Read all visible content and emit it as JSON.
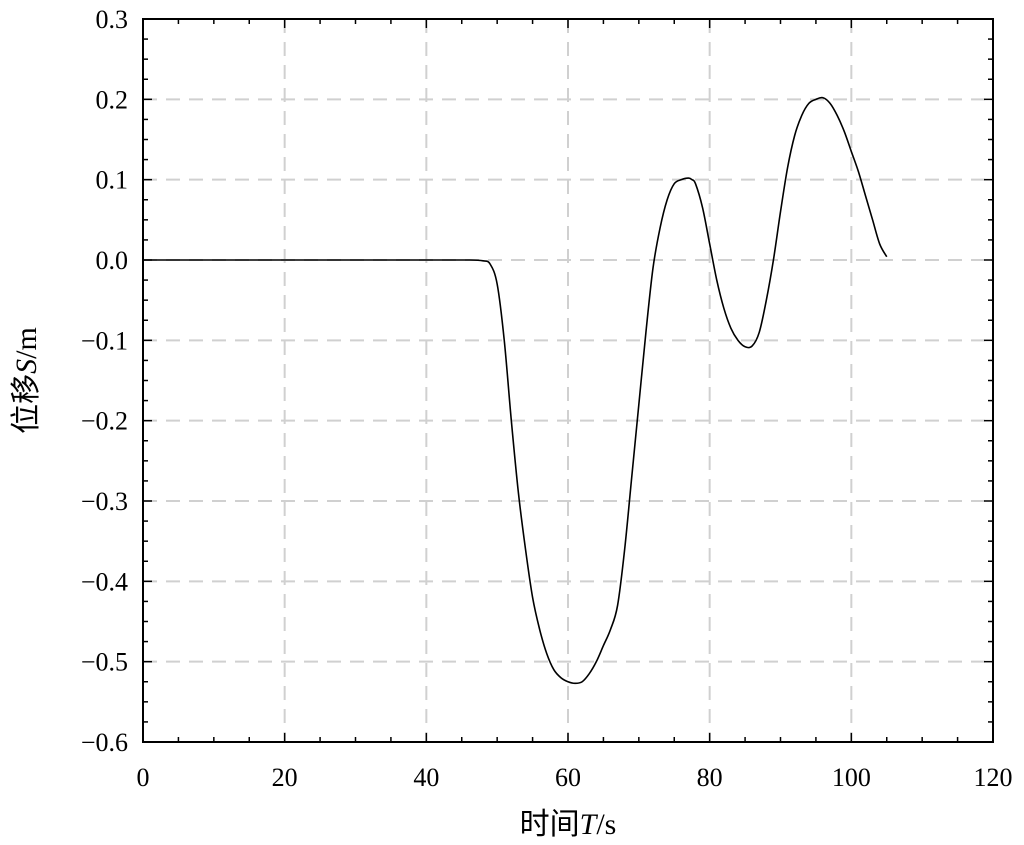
{
  "chart_data": {
    "type": "line",
    "xlabel_prefix": "时间",
    "xlabel_var": "T",
    "xlabel_unit": "/s",
    "ylabel_prefix": "位移",
    "ylabel_var": "S",
    "ylabel_unit": "/m",
    "xlim": [
      0,
      120
    ],
    "ylim": [
      -0.6,
      0.3
    ],
    "x_ticks": [
      0,
      20,
      40,
      60,
      80,
      100,
      120
    ],
    "x_tick_labels": [
      "0",
      "20",
      "40",
      "60",
      "80",
      "100",
      "120"
    ],
    "y_ticks": [
      0.3,
      0.2,
      0.1,
      0.0,
      -0.1,
      -0.2,
      -0.3,
      -0.4,
      -0.5,
      -0.6
    ],
    "y_tick_labels": [
      "0.3",
      "0.2",
      "0.1",
      "0.0",
      "−0.1",
      "−0.2",
      "−0.3",
      "−0.4",
      "−0.5",
      "−0.6"
    ],
    "grid": true,
    "series": [
      {
        "x": [
          0,
          10,
          20,
          30,
          40,
          46,
          48,
          49,
          50,
          51,
          52,
          53,
          54,
          55,
          56,
          57,
          58,
          59,
          60,
          61,
          62,
          63,
          64,
          65,
          66,
          67,
          68,
          69,
          70,
          71,
          72,
          73,
          74,
          75,
          76,
          77,
          77.5,
          78,
          79,
          80,
          81,
          82,
          83,
          84,
          85,
          86,
          87,
          88,
          89,
          90,
          91,
          92,
          93,
          94,
          95,
          96,
          97,
          98,
          99,
          100,
          101,
          102,
          103,
          104,
          105
        ],
        "y": [
          0,
          0,
          0,
          0,
          0,
          0,
          -0.001,
          -0.005,
          -0.03,
          -0.1,
          -0.2,
          -0.29,
          -0.36,
          -0.42,
          -0.46,
          -0.49,
          -0.51,
          -0.52,
          -0.525,
          -0.527,
          -0.525,
          -0.515,
          -0.5,
          -0.48,
          -0.46,
          -0.43,
          -0.36,
          -0.27,
          -0.18,
          -0.09,
          -0.01,
          0.04,
          0.075,
          0.095,
          0.1,
          0.102,
          0.1,
          0.095,
          0.065,
          0.02,
          -0.025,
          -0.06,
          -0.085,
          -0.1,
          -0.108,
          -0.107,
          -0.09,
          -0.05,
          0.0,
          0.06,
          0.115,
          0.155,
          0.18,
          0.195,
          0.2,
          0.202,
          0.195,
          0.18,
          0.16,
          0.135,
          0.11,
          0.08,
          0.05,
          0.02,
          0.004
        ]
      }
    ]
  }
}
